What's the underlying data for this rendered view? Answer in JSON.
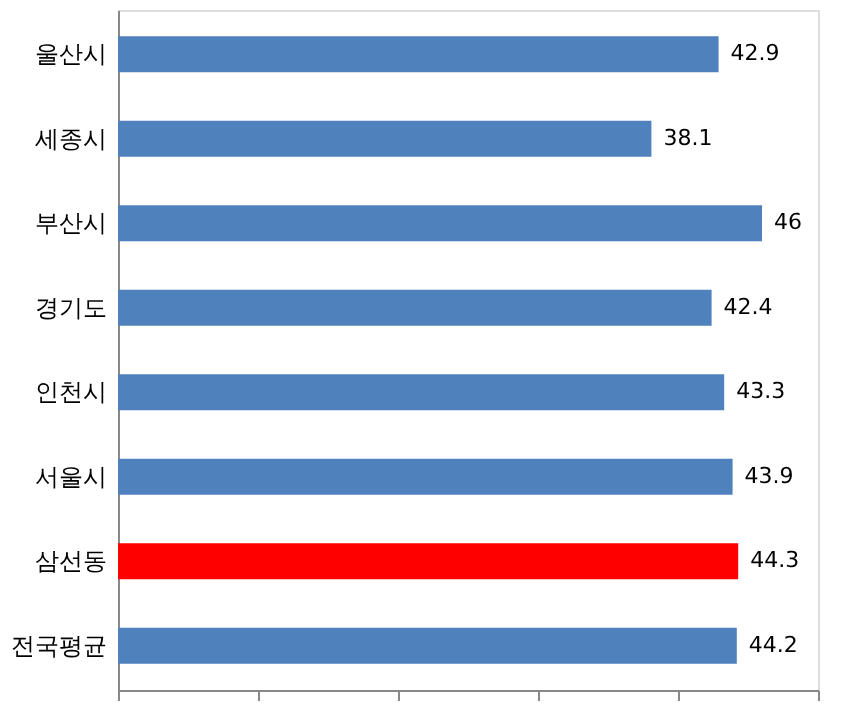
{
  "chart_data": {
    "type": "bar",
    "orientation": "horizontal",
    "categories": [
      "울산시",
      "세종시",
      "부산시",
      "경기도",
      "인천시",
      "서울시",
      "삼선동",
      "전국평균"
    ],
    "values": [
      42.9,
      38.1,
      46,
      42.4,
      43.3,
      43.9,
      44.3,
      44.2
    ],
    "colors": [
      "#4f81bd",
      "#4f81bd",
      "#4f81bd",
      "#4f81bd",
      "#4f81bd",
      "#4f81bd",
      "#ff0000",
      "#4f81bd"
    ],
    "xlim": [
      0,
      50
    ],
    "tick_labels": "y",
    "data_labels": true
  }
}
